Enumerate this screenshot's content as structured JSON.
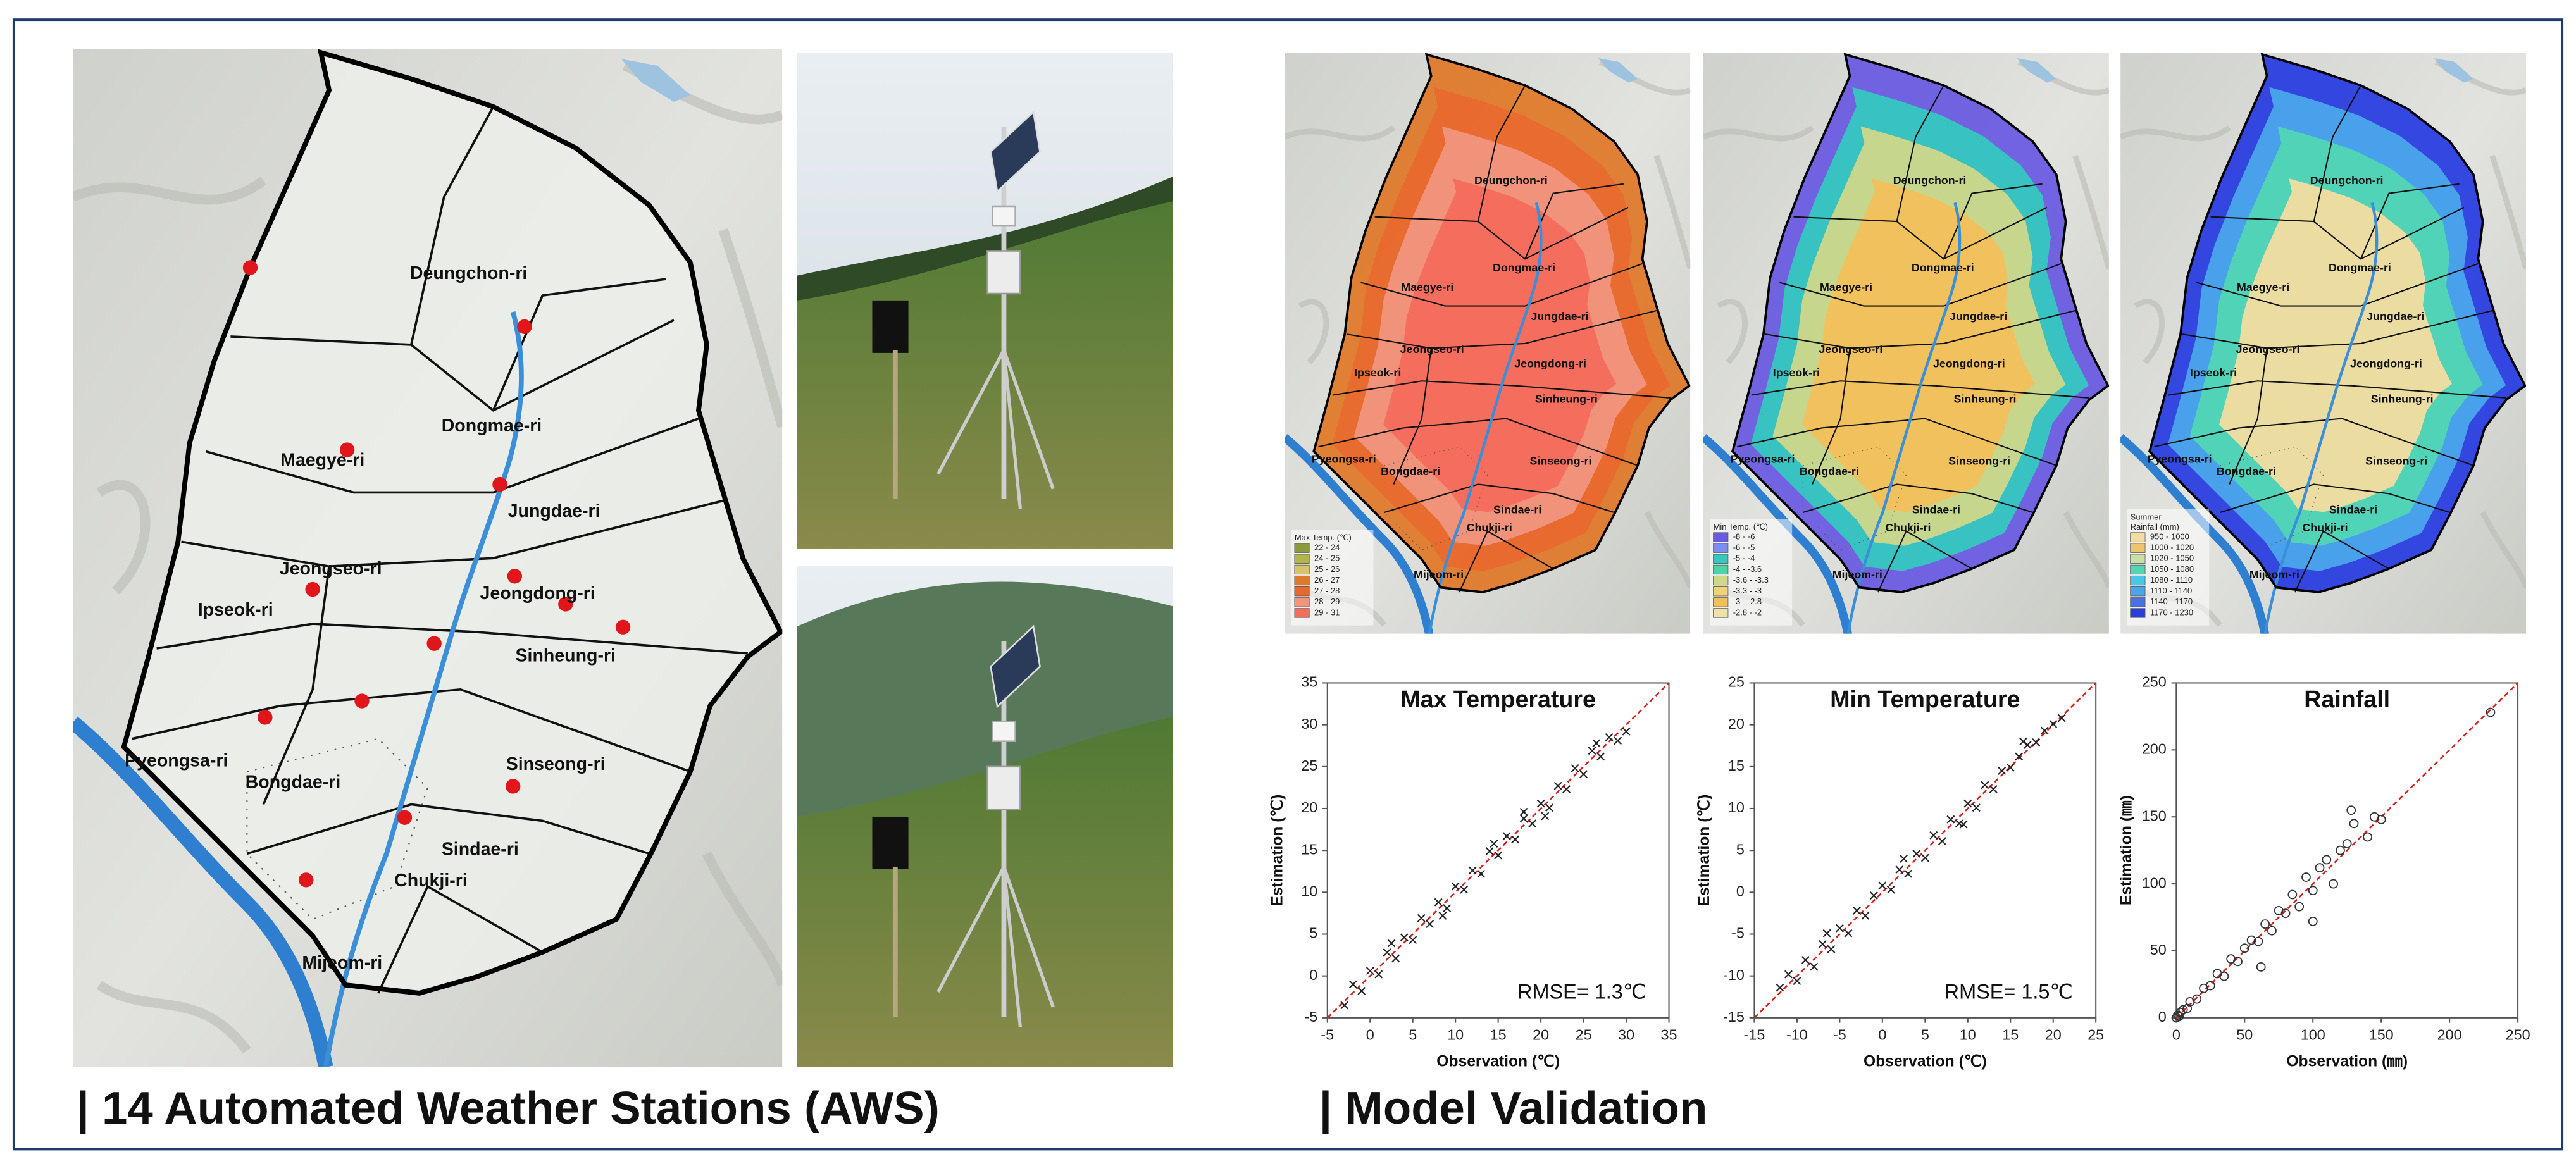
{
  "aws": {
    "title": "| 14 Automated Weather Stations (AWS)",
    "villages": [
      "Deungchon-ri",
      "Dongmae-ri",
      "Maegye-ri",
      "Jungdae-ri",
      "Jeongseo-ri",
      "Jeongdong-ri",
      "Ipseok-ri",
      "Sinheung-ri",
      "Pyeongsa-ri",
      "Sinseong-ri",
      "Bongdae-ri",
      "Sindae-ri",
      "Chukji-ri",
      "Mijeom-ri"
    ]
  },
  "validation": {
    "title": "| Model Validation",
    "maps": [
      {
        "legend_title": [
          "Max Temp. (℃)"
        ],
        "classes": [
          "22 - 24",
          "24 - 25",
          "25 - 26",
          "26 - 27",
          "27 - 28",
          "28 - 29",
          "29 - 31"
        ],
        "colors": [
          "#8a9a3c",
          "#b2b44c",
          "#d8c466",
          "#df7a2c",
          "#e8692f",
          "#f1957e",
          "#f46d5c"
        ]
      },
      {
        "legend_title": [
          "Min Temp. (℃)"
        ],
        "classes": [
          "-8 - -6",
          "-6 - -5",
          "-5 - -4",
          "-4 - -3.6",
          "-3.6 - -3.3",
          "-3.3 - -3",
          "-3 - -2.8",
          "-2.8 - -2"
        ],
        "colors": [
          "#6a5ce0",
          "#7c8ef0",
          "#36c7c0",
          "#4ad6a4",
          "#cfd78a",
          "#f1d27a",
          "#f2c05a",
          "#efe2a8"
        ]
      },
      {
        "legend_title": [
          "Summer",
          "Rainfall (mm)"
        ],
        "classes": [
          "950 - 1000",
          "1000 - 1020",
          "1020 - 1050",
          "1050 - 1080",
          "1080 - 1110",
          "1110 - 1140",
          "1140 - 1170",
          "1170 - 1230"
        ],
        "colors": [
          "#f3dca0",
          "#f0c36e",
          "#c8e0a8",
          "#52d6b4",
          "#48c8e6",
          "#4aa6ea",
          "#4a70e6",
          "#2a3ee0"
        ]
      }
    ]
  },
  "chart_data": [
    {
      "type": "scatter",
      "title": "Max Temperature",
      "xlabel": "Observation (℃)",
      "ylabel": "Estimation (℃)",
      "annotation": "RMSE= 1.3℃",
      "marker": "x",
      "color": "#222222",
      "reference_color": "#d42020",
      "xlim": [
        -5,
        35
      ],
      "ylim": [
        -5,
        35
      ],
      "xticks": [
        -5,
        0,
        5,
        10,
        15,
        20,
        25,
        30,
        35
      ],
      "yticks": [
        -5,
        0,
        5,
        10,
        15,
        20,
        25,
        30,
        35
      ],
      "x": [
        -3,
        -2,
        -1,
        0,
        1,
        2,
        3,
        4,
        5,
        6,
        7,
        8,
        9,
        10,
        11,
        12,
        13,
        14,
        15,
        16,
        17,
        18,
        19,
        20,
        21,
        22,
        23,
        24,
        25,
        26,
        27,
        28,
        29,
        30,
        2.5,
        8.5,
        14.5,
        20.5,
        26.5,
        18
      ],
      "y": [
        -3.5,
        -1,
        -1.8,
        0.6,
        0.2,
        2.8,
        2.1,
        4.6,
        4.3,
        6.9,
        6.2,
        8.8,
        8.1,
        10.7,
        10.3,
        12.6,
        12.2,
        14.9,
        14.4,
        16.7,
        16.3,
        18.8,
        18.2,
        20.6,
        20.1,
        22.7,
        22.3,
        24.8,
        24.1,
        26.9,
        26.2,
        28.5,
        28.1,
        29.2,
        3.9,
        7.2,
        15.8,
        19.1,
        27.8,
        19.6
      ]
    },
    {
      "type": "scatter",
      "title": "Min Temperature",
      "xlabel": "Observation (℃)",
      "ylabel": "Estimation (℃)",
      "annotation": "RMSE= 1.5℃",
      "marker": "x",
      "color": "#222222",
      "reference_color": "#d42020",
      "xlim": [
        -15,
        25
      ],
      "ylim": [
        -15,
        25
      ],
      "xticks": [
        -15,
        -10,
        -5,
        0,
        5,
        10,
        15,
        20,
        25
      ],
      "yticks": [
        -15,
        -10,
        -5,
        0,
        5,
        10,
        15,
        20,
        25
      ],
      "x": [
        -12,
        -11,
        -10,
        -9,
        -8,
        -7,
        -6,
        -5,
        -4,
        -3,
        -2,
        -1,
        0,
        1,
        2,
        3,
        4,
        5,
        6,
        7,
        8,
        9,
        10,
        11,
        12,
        13,
        14,
        15,
        16,
        17,
        18,
        19,
        20,
        21,
        -6.5,
        2.5,
        9.5,
        16.5
      ],
      "y": [
        -11.4,
        -9.8,
        -10.6,
        -8.1,
        -8.9,
        -6.2,
        -6.8,
        -4.3,
        -4.9,
        -2.2,
        -2.8,
        -0.4,
        0.8,
        0.3,
        2.7,
        2.2,
        4.6,
        4.1,
        6.8,
        6.1,
        8.7,
        8.2,
        10.6,
        10.1,
        12.8,
        12.3,
        14.5,
        14.9,
        16.2,
        17.6,
        17.9,
        19.3,
        20.1,
        20.8,
        -4.9,
        4.0,
        8.1,
        18.0
      ]
    },
    {
      "type": "scatter",
      "title": "Rainfall",
      "xlabel": "Observation (㎜)",
      "ylabel": "Estimation (㎜)",
      "marker": "circle",
      "color": "#333333",
      "reference_color": "#d42020",
      "xlim": [
        0,
        250
      ],
      "ylim": [
        0,
        250
      ],
      "xticks": [
        0,
        50,
        100,
        150,
        200,
        250
      ],
      "yticks": [
        0,
        50,
        100,
        150,
        200,
        250
      ],
      "x": [
        0,
        1,
        2,
        3,
        5,
        8,
        10,
        15,
        20,
        25,
        30,
        35,
        40,
        45,
        50,
        55,
        60,
        65,
        70,
        75,
        80,
        85,
        90,
        95,
        100,
        105,
        110,
        115,
        120,
        125,
        130,
        140,
        145,
        150,
        230,
        62,
        100,
        128
      ],
      "y": [
        0,
        2,
        1,
        4,
        6,
        7,
        12,
        14,
        22,
        24,
        33,
        31,
        44,
        42,
        52,
        58,
        57,
        70,
        65,
        80,
        78,
        92,
        83,
        105,
        95,
        112,
        118,
        100,
        125,
        130,
        145,
        135,
        150,
        148,
        228,
        38,
        72,
        155
      ]
    }
  ]
}
